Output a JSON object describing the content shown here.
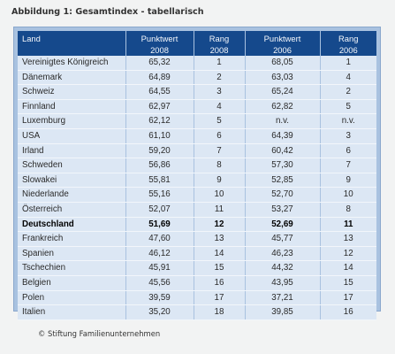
{
  "title": "Abbildung 1: Gesamtindex - tabellarisch",
  "columns": [
    {
      "line1": "Land",
      "line2": ""
    },
    {
      "line1": "Punktwert",
      "line2": "2008"
    },
    {
      "line1": "Rang",
      "line2": "2008"
    },
    {
      "line1": "Punktwert",
      "line2": "2006"
    },
    {
      "line1": "Rang",
      "line2": "2006"
    }
  ],
  "rows": [
    {
      "land": "Vereinigtes Königreich",
      "p2008": "65,32",
      "r2008": "1",
      "p2006": "68,05",
      "r2006": "1",
      "bold": false
    },
    {
      "land": "Dänemark",
      "p2008": "64,89",
      "r2008": "2",
      "p2006": "63,03",
      "r2006": "4",
      "bold": false
    },
    {
      "land": "Schweiz",
      "p2008": "64,55",
      "r2008": "3",
      "p2006": "65,24",
      "r2006": "2",
      "bold": false
    },
    {
      "land": "Finnland",
      "p2008": "62,97",
      "r2008": "4",
      "p2006": "62,82",
      "r2006": "5",
      "bold": false
    },
    {
      "land": "Luxemburg",
      "p2008": "62,12",
      "r2008": "5",
      "p2006": "n.v.",
      "r2006": "n.v.",
      "bold": false
    },
    {
      "land": "USA",
      "p2008": "61,10",
      "r2008": "6",
      "p2006": "64,39",
      "r2006": "3",
      "bold": false
    },
    {
      "land": "Irland",
      "p2008": "59,20",
      "r2008": "7",
      "p2006": "60,42",
      "r2006": "6",
      "bold": false
    },
    {
      "land": "Schweden",
      "p2008": "56,86",
      "r2008": "8",
      "p2006": "57,30",
      "r2006": "7",
      "bold": false
    },
    {
      "land": "Slowakei",
      "p2008": "55,81",
      "r2008": "9",
      "p2006": "52,85",
      "r2006": "9",
      "bold": false
    },
    {
      "land": "Niederlande",
      "p2008": "55,16",
      "r2008": "10",
      "p2006": "52,70",
      "r2006": "10",
      "bold": false
    },
    {
      "land": "Österreich",
      "p2008": "52,07",
      "r2008": "11",
      "p2006": "53,27",
      "r2006": "8",
      "bold": false
    },
    {
      "land": "Deutschland",
      "p2008": "51,69",
      "r2008": "12",
      "p2006": "52,69",
      "r2006": "11",
      "bold": true
    },
    {
      "land": "Frankreich",
      "p2008": "47,60",
      "r2008": "13",
      "p2006": "45,77",
      "r2006": "13",
      "bold": false
    },
    {
      "land": "Spanien",
      "p2008": "46,12",
      "r2008": "14",
      "p2006": "46,23",
      "r2006": "12",
      "bold": false
    },
    {
      "land": "Tschechien",
      "p2008": "45,91",
      "r2008": "15",
      "p2006": "44,32",
      "r2006": "14",
      "bold": false
    },
    {
      "land": "Belgien",
      "p2008": "45,56",
      "r2008": "16",
      "p2006": "43,95",
      "r2006": "15",
      "bold": false
    },
    {
      "land": "Polen",
      "p2008": "39,59",
      "r2008": "17",
      "p2006": "37,21",
      "r2006": "17",
      "bold": false
    },
    {
      "land": "Italien",
      "p2008": "35,20",
      "r2008": "18",
      "p2006": "39,85",
      "r2006": "16",
      "bold": false
    }
  ],
  "footer": "© Stiftung Familienunternehmen",
  "colors": {
    "header_bg": "#15498c",
    "cell_bg": "#dce7f4",
    "frame_bg": "#a9c2e0"
  }
}
